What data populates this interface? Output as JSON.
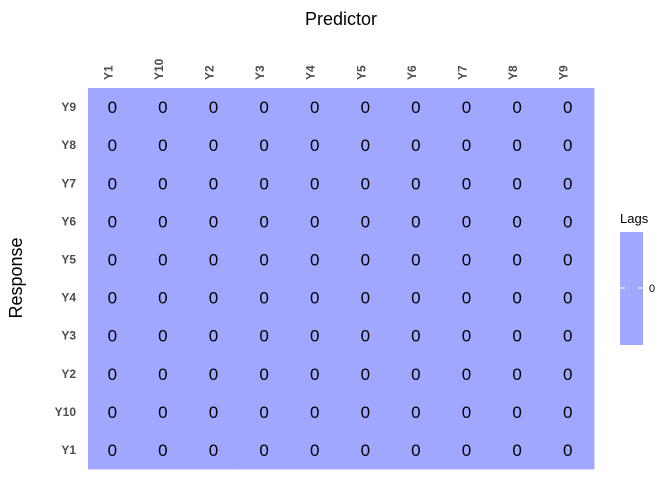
{
  "chart_data": {
    "type": "heatmap",
    "title": "Predictor",
    "xlabel": "Predictor",
    "ylabel": "Response",
    "x_categories": [
      "Y1",
      "Y10",
      "Y2",
      "Y3",
      "Y4",
      "Y5",
      "Y6",
      "Y7",
      "Y8",
      "Y9"
    ],
    "y_categories": [
      "Y9",
      "Y8",
      "Y7",
      "Y6",
      "Y5",
      "Y4",
      "Y3",
      "Y2",
      "Y10",
      "Y1"
    ],
    "values": [
      [
        0,
        0,
        0,
        0,
        0,
        0,
        0,
        0,
        0,
        0
      ],
      [
        0,
        0,
        0,
        0,
        0,
        0,
        0,
        0,
        0,
        0
      ],
      [
        0,
        0,
        0,
        0,
        0,
        0,
        0,
        0,
        0,
        0
      ],
      [
        0,
        0,
        0,
        0,
        0,
        0,
        0,
        0,
        0,
        0
      ],
      [
        0,
        0,
        0,
        0,
        0,
        0,
        0,
        0,
        0,
        0
      ],
      [
        0,
        0,
        0,
        0,
        0,
        0,
        0,
        0,
        0,
        0
      ],
      [
        0,
        0,
        0,
        0,
        0,
        0,
        0,
        0,
        0,
        0
      ],
      [
        0,
        0,
        0,
        0,
        0,
        0,
        0,
        0,
        0,
        0
      ],
      [
        0,
        0,
        0,
        0,
        0,
        0,
        0,
        0,
        0,
        0
      ],
      [
        0,
        0,
        0,
        0,
        0,
        0,
        0,
        0,
        0,
        0
      ]
    ],
    "color": "#9fa7ff",
    "legend": {
      "title": "Lags",
      "labels": [
        "0"
      ],
      "position": "right"
    }
  }
}
